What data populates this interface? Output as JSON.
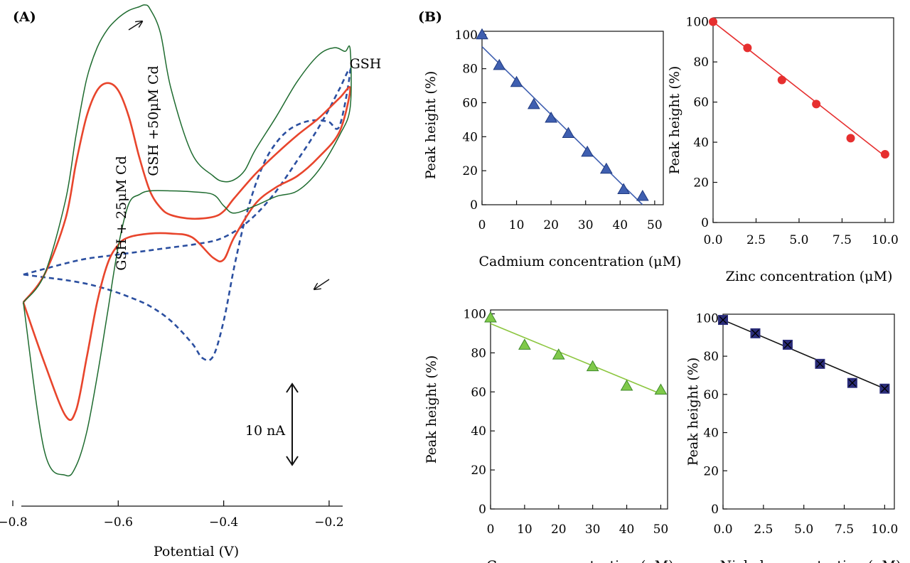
{
  "panel_a": {
    "label": "(A)"
  },
  "panel_b": {
    "label": "(B)"
  },
  "chart_data": [
    {
      "type": "line",
      "panel": "A",
      "xlabel": "Potential (V)",
      "ylabel": "",
      "xlim": [
        -0.8,
        -0.15
      ],
      "ylim": [
        -14,
        38
      ],
      "x_ticks": [
        "−0.8",
        "−0.6",
        "−0.4",
        "−0.2"
      ],
      "x_tick_values": [
        -0.8,
        -0.6,
        -0.4,
        -0.2
      ],
      "scale_bar": {
        "label": "10 nA",
        "value": 10
      },
      "series": [
        {
          "name": "GSH",
          "color": "#2b4fa0",
          "style": "dashed",
          "x": [
            -0.78,
            -0.74,
            -0.7,
            -0.66,
            -0.62,
            -0.58,
            -0.54,
            -0.5,
            -0.46,
            -0.42,
            -0.4,
            -0.38,
            -0.36,
            -0.34,
            -0.32,
            -0.3,
            -0.28,
            -0.26,
            -0.24,
            -0.22,
            -0.2,
            -0.18,
            -0.16,
            -0.18,
            -0.2,
            -0.22,
            -0.24,
            -0.26,
            -0.28,
            -0.3,
            -0.32,
            -0.34,
            -0.36,
            -0.38,
            -0.4,
            -0.42,
            -0.44,
            -0.46,
            -0.5,
            -0.54,
            -0.58,
            -0.62,
            -0.66,
            -0.7,
            -0.74,
            -0.78
          ],
          "y": [
            10.0,
            10.6,
            11.2,
            11.7,
            12.0,
            12.3,
            12.6,
            12.9,
            13.2,
            13.6,
            14.0,
            14.6,
            15.4,
            16.4,
            17.6,
            19.0,
            20.6,
            22.3,
            24.0,
            25.8,
            27.8,
            30.0,
            32.0,
            26.0,
            26.4,
            26.6,
            26.5,
            26.1,
            25.4,
            24.2,
            22.4,
            19.6,
            15.8,
            10.8,
            5.0,
            1.2,
            1.0,
            2.6,
            5.0,
            6.6,
            7.6,
            8.4,
            9.0,
            9.4,
            9.7,
            10.0
          ]
        },
        {
          "name": "GSH + 25μM Cd",
          "color": "#e8452c",
          "style": "solid",
          "x": [
            -0.78,
            -0.74,
            -0.7,
            -0.68,
            -0.66,
            -0.64,
            -0.62,
            -0.6,
            -0.58,
            -0.56,
            -0.54,
            -0.52,
            -0.5,
            -0.46,
            -0.42,
            -0.4,
            -0.38,
            -0.34,
            -0.3,
            -0.26,
            -0.22,
            -0.18,
            -0.16,
            -0.18,
            -0.22,
            -0.26,
            -0.3,
            -0.34,
            -0.38,
            -0.4,
            -0.42,
            -0.46,
            -0.5,
            -0.54,
            -0.58,
            -0.6,
            -0.62,
            -0.64,
            -0.66,
            -0.68,
            -0.7,
            -0.74,
            -0.78
          ],
          "y": [
            7.0,
            10.0,
            16.0,
            22.0,
            27.0,
            29.8,
            30.6,
            29.8,
            27.0,
            22.6,
            19.0,
            17.2,
            16.4,
            16.0,
            16.2,
            16.8,
            18.2,
            20.8,
            23.0,
            25.0,
            26.8,
            29.0,
            30.0,
            25.4,
            22.6,
            20.6,
            19.4,
            17.6,
            14.0,
            11.6,
            11.8,
            14.0,
            14.4,
            14.4,
            14.0,
            13.2,
            11.2,
            7.0,
            1.0,
            -4.6,
            -5.2,
            0.5,
            7.0
          ]
        },
        {
          "name": "GSH +50μM Cd",
          "color": "#1e6b2f",
          "style": "solid",
          "x": [
            -0.78,
            -0.74,
            -0.7,
            -0.68,
            -0.66,
            -0.64,
            -0.62,
            -0.6,
            -0.58,
            -0.56,
            -0.55,
            -0.54,
            -0.52,
            -0.5,
            -0.46,
            -0.42,
            -0.4,
            -0.38,
            -0.36,
            -0.34,
            -0.3,
            -0.26,
            -0.22,
            -0.19,
            -0.17,
            -0.16,
            -0.16,
            -0.18,
            -0.22,
            -0.26,
            -0.3,
            -0.34,
            -0.38,
            -0.4,
            -0.42,
            -0.46,
            -0.5,
            -0.54,
            -0.56,
            -0.58,
            -0.6,
            -0.62,
            -0.64,
            -0.66,
            -0.68,
            -0.7,
            -0.74,
            -0.78
          ],
          "y": [
            7.0,
            10.0,
            18.0,
            25.0,
            31.0,
            34.4,
            36.4,
            37.6,
            38.4,
            38.8,
            39.0,
            38.6,
            36.0,
            30.0,
            23.0,
            20.6,
            20.0,
            20.2,
            21.2,
            23.4,
            27.0,
            30.8,
            33.6,
            34.4,
            34.0,
            34.2,
            28.0,
            25.0,
            21.2,
            19.0,
            18.4,
            17.4,
            16.6,
            17.4,
            18.6,
            18.9,
            19.0,
            19.0,
            18.6,
            17.6,
            13.0,
            6.0,
            -1.0,
            -7.0,
            -10.6,
            -11.6,
            -9.0,
            7.0
          ]
        }
      ]
    },
    {
      "type": "scatter",
      "panel": "B1",
      "xlabel": "Cadmium concentration (μM)",
      "ylabel": "Peak height (%)",
      "xlim": [
        0,
        52.5
      ],
      "ylim": [
        0,
        102
      ],
      "x_ticks": [
        "0",
        "10",
        "20",
        "30",
        "40",
        "50"
      ],
      "x_tick_values": [
        0,
        10,
        20,
        30,
        40,
        50
      ],
      "y_ticks": [
        "0",
        "20",
        "40",
        "60",
        "80",
        "100"
      ],
      "y_tick_values": [
        0,
        20,
        40,
        60,
        80,
        100
      ],
      "marker": "triangle",
      "color": "#3f5fb0",
      "fit_color": "#3f5fb0",
      "x": [
        0,
        5,
        10,
        15,
        20,
        25,
        30.5,
        36,
        41,
        46.5
      ],
      "y": [
        100,
        82,
        72,
        59,
        51,
        42,
        31,
        21,
        9,
        5
      ],
      "fit": {
        "x": [
          0,
          46.5
        ],
        "y": [
          93,
          0
        ]
      }
    },
    {
      "type": "scatter",
      "panel": "B2",
      "xlabel": "Zinc concentration (μM)",
      "ylabel": "Peak height (%)",
      "xlim": [
        0,
        10.5
      ],
      "ylim": [
        0,
        102
      ],
      "x_ticks": [
        "0.0",
        "2.5",
        "5.0",
        "7.5",
        "10.0"
      ],
      "x_tick_values": [
        0,
        2.5,
        5,
        7.5,
        10
      ],
      "y_ticks": [
        "0",
        "20",
        "40",
        "60",
        "80",
        "100"
      ],
      "y_tick_values": [
        0,
        20,
        40,
        60,
        80,
        100
      ],
      "marker": "circle",
      "color": "#e62f2f",
      "fit_color": "#e62f2f",
      "x": [
        0,
        2,
        4,
        6,
        8,
        10
      ],
      "y": [
        100,
        87,
        71,
        59,
        42,
        34
      ],
      "fit": {
        "x": [
          0,
          10
        ],
        "y": [
          100,
          33
        ]
      }
    },
    {
      "type": "scatter",
      "panel": "B3",
      "xlabel": "Copper concentration (μM)",
      "ylabel": "Peak height (%)",
      "xlim": [
        0,
        52
      ],
      "ylim": [
        0,
        102
      ],
      "x_ticks": [
        "0",
        "10",
        "20",
        "30",
        "40",
        "50"
      ],
      "x_tick_values": [
        0,
        10,
        20,
        30,
        40,
        50
      ],
      "y_ticks": [
        "0",
        "20",
        "40",
        "60",
        "80",
        "100"
      ],
      "y_tick_values": [
        0,
        20,
        40,
        60,
        80,
        100
      ],
      "marker": "triangle",
      "color": "#7fc94a",
      "fit_color": "#8cc63f",
      "x": [
        0,
        10,
        20,
        30,
        40,
        50
      ],
      "y": [
        98,
        84,
        79,
        73,
        63,
        61
      ],
      "fit": {
        "x": [
          0,
          50
        ],
        "y": [
          95,
          59
        ]
      }
    },
    {
      "type": "scatter",
      "panel": "B4",
      "xlabel": "Nickel concentration (μM)",
      "ylabel": "Peak height (%)",
      "xlim": [
        0,
        10.6
      ],
      "ylim": [
        0,
        102
      ],
      "x_ticks": [
        "0.0",
        "2.5",
        "5.0",
        "7.5",
        "10.0"
      ],
      "x_tick_values": [
        0,
        2.5,
        5,
        7.5,
        10
      ],
      "y_ticks": [
        "0",
        "20",
        "40",
        "60",
        "80",
        "100"
      ],
      "y_tick_values": [
        0,
        20,
        40,
        60,
        80,
        100
      ],
      "marker": "square-x",
      "color": "#2a2c7a",
      "fit_color": "#111111",
      "x": [
        0,
        2,
        4,
        6,
        8,
        10
      ],
      "y": [
        99,
        92,
        86,
        76,
        66,
        63
      ],
      "fit": {
        "x": [
          0,
          10
        ],
        "y": [
          99,
          63
        ]
      }
    }
  ]
}
